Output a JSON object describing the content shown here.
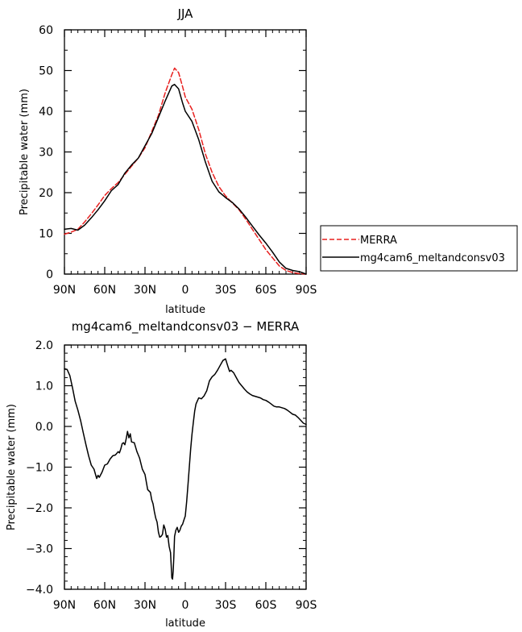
{
  "chart_data": [
    {
      "type": "line",
      "title": "JJA",
      "xlabel": "latitude",
      "ylabel": "Precipitable water (mm)",
      "xlim": [
        90,
        -90
      ],
      "ylim": [
        0,
        60
      ],
      "x_ticks": [
        {
          "value": 90,
          "label": "90N"
        },
        {
          "value": 60,
          "label": "60N"
        },
        {
          "value": 30,
          "label": "30N"
        },
        {
          "value": 0,
          "label": "0"
        },
        {
          "value": -30,
          "label": "30S"
        },
        {
          "value": -60,
          "label": "60S"
        },
        {
          "value": -90,
          "label": "90S"
        }
      ],
      "y_ticks": [
        {
          "value": 0,
          "label": "0"
        },
        {
          "value": 10,
          "label": "10"
        },
        {
          "value": 20,
          "label": "20"
        },
        {
          "value": 30,
          "label": "30"
        },
        {
          "value": 40,
          "label": "40"
        },
        {
          "value": 50,
          "label": "50"
        },
        {
          "value": 60,
          "label": "60"
        }
      ],
      "legend": "right",
      "series": [
        {
          "name": "MERRA",
          "color": "#e8201f",
          "style": "dashed",
          "x": [
            90,
            85,
            80,
            75,
            70,
            65,
            60,
            55,
            50,
            45,
            40,
            35,
            30,
            25,
            20,
            15,
            10,
            8,
            5,
            2,
            0,
            -5,
            -10,
            -15,
            -20,
            -25,
            -30,
            -35,
            -40,
            -45,
            -50,
            -55,
            -60,
            -65,
            -70,
            -75,
            -80,
            -85,
            -90
          ],
          "values": [
            9.8,
            10.3,
            11.0,
            12.8,
            14.8,
            17.0,
            19.3,
            21.0,
            22.5,
            24.5,
            26.5,
            28.5,
            31.0,
            35.0,
            39.0,
            44.5,
            49.0,
            50.6,
            49.5,
            46.0,
            43.5,
            40.5,
            35.5,
            29.5,
            25.0,
            21.5,
            19.2,
            17.5,
            15.8,
            13.5,
            11.0,
            8.5,
            6.0,
            4.0,
            2.0,
            0.9,
            0.4,
            0.1,
            0.0
          ]
        },
        {
          "name": "mg4cam6_meltandconsv03",
          "color": "#000000",
          "style": "solid",
          "x": [
            90,
            85,
            80,
            75,
            70,
            65,
            60,
            55,
            50,
            45,
            40,
            35,
            30,
            25,
            20,
            15,
            10,
            8,
            5,
            2,
            0,
            -5,
            -10,
            -15,
            -20,
            -25,
            -30,
            -35,
            -40,
            -45,
            -50,
            -55,
            -60,
            -65,
            -70,
            -75,
            -80,
            -85,
            -90
          ],
          "values": [
            11.0,
            11.2,
            10.8,
            12.0,
            13.8,
            15.8,
            18.0,
            20.5,
            22.0,
            24.8,
            26.8,
            28.5,
            31.5,
            34.5,
            38.5,
            42.5,
            46.2,
            46.6,
            45.5,
            42.0,
            40.0,
            37.5,
            33.0,
            27.5,
            22.8,
            20.2,
            18.8,
            17.6,
            16.0,
            14.0,
            11.8,
            9.6,
            7.6,
            5.4,
            3.0,
            1.4,
            0.9,
            0.6,
            0.0
          ]
        }
      ]
    },
    {
      "type": "line",
      "title": "mg4cam6_meltandconsv03 − MERRA",
      "xlabel": "latitude",
      "ylabel": "Precipitable water (mm)",
      "xlim": [
        90,
        -90
      ],
      "ylim": [
        -4.0,
        2.0
      ],
      "x_ticks": [
        {
          "value": 90,
          "label": "90N"
        },
        {
          "value": 60,
          "label": "60N"
        },
        {
          "value": 30,
          "label": "30N"
        },
        {
          "value": 0,
          "label": "0"
        },
        {
          "value": -30,
          "label": "30S"
        },
        {
          "value": -60,
          "label": "60S"
        },
        {
          "value": -90,
          "label": "90S"
        }
      ],
      "y_ticks": [
        {
          "value": 2.0,
          "label": "2.0"
        },
        {
          "value": 1.0,
          "label": "1.0"
        },
        {
          "value": 0.0,
          "label": "0.0"
        },
        {
          "value": -1.0,
          "label": "−1.0"
        },
        {
          "value": -2.0,
          "label": "−2.0"
        },
        {
          "value": -3.0,
          "label": "−3.0"
        },
        {
          "value": -4.0,
          "label": "−4.0"
        }
      ],
      "series": [
        {
          "color": "#000000",
          "style": "solid",
          "x": [
            90,
            88,
            86,
            84,
            82,
            80,
            78,
            76,
            74,
            72,
            70,
            68,
            66,
            65,
            64,
            62,
            60,
            58,
            56,
            54,
            52,
            50,
            49,
            48,
            47,
            46,
            45,
            44,
            43,
            42,
            41,
            40,
            38,
            36,
            35,
            34,
            32,
            30,
            28,
            26,
            25,
            24,
            23,
            22,
            21,
            20,
            19,
            18,
            17,
            16,
            15,
            14,
            13,
            12,
            11,
            10,
            9.5,
            9,
            8.5,
            8,
            7,
            6,
            5,
            4,
            3,
            2,
            1,
            0,
            -1,
            -2,
            -3,
            -4,
            -5,
            -6,
            -7,
            -8,
            -10,
            -12,
            -14,
            -16,
            -18,
            -20,
            -22,
            -24,
            -26,
            -28,
            -30,
            -31,
            -32,
            -33,
            -34,
            -36,
            -38,
            -40,
            -42,
            -44,
            -46,
            -48,
            -50,
            -52,
            -54,
            -56,
            -58,
            -60,
            -62,
            -64,
            -66,
            -68,
            -70,
            -72,
            -74,
            -76,
            -78,
            -80,
            -82,
            -84,
            -86,
            -88,
            -90
          ],
          "values": [
            1.42,
            1.4,
            1.25,
            0.95,
            0.62,
            0.4,
            0.15,
            -0.15,
            -0.45,
            -0.72,
            -0.95,
            -1.05,
            -1.28,
            -1.2,
            -1.25,
            -1.12,
            -0.95,
            -0.92,
            -0.8,
            -0.72,
            -0.7,
            -0.62,
            -0.65,
            -0.55,
            -0.42,
            -0.4,
            -0.45,
            -0.3,
            -0.12,
            -0.28,
            -0.18,
            -0.38,
            -0.4,
            -0.62,
            -0.7,
            -0.78,
            -1.05,
            -1.18,
            -1.55,
            -1.62,
            -1.8,
            -1.9,
            -2.1,
            -2.25,
            -2.35,
            -2.6,
            -2.72,
            -2.7,
            -2.65,
            -2.42,
            -2.52,
            -2.72,
            -2.68,
            -2.95,
            -3.1,
            -3.72,
            -3.75,
            -3.55,
            -3.2,
            -2.7,
            -2.55,
            -2.48,
            -2.6,
            -2.55,
            -2.45,
            -2.4,
            -2.3,
            -2.2,
            -1.85,
            -1.45,
            -1.0,
            -0.55,
            -0.2,
            0.1,
            0.38,
            0.55,
            0.7,
            0.68,
            0.75,
            0.88,
            1.12,
            1.22,
            1.28,
            1.38,
            1.5,
            1.62,
            1.66,
            1.55,
            1.45,
            1.35,
            1.38,
            1.32,
            1.2,
            1.08,
            1.0,
            0.92,
            0.85,
            0.8,
            0.76,
            0.74,
            0.72,
            0.7,
            0.66,
            0.64,
            0.6,
            0.55,
            0.5,
            0.48,
            0.48,
            0.46,
            0.44,
            0.4,
            0.35,
            0.3,
            0.28,
            0.22,
            0.15,
            0.08,
            0.05
          ]
        }
      ]
    }
  ]
}
